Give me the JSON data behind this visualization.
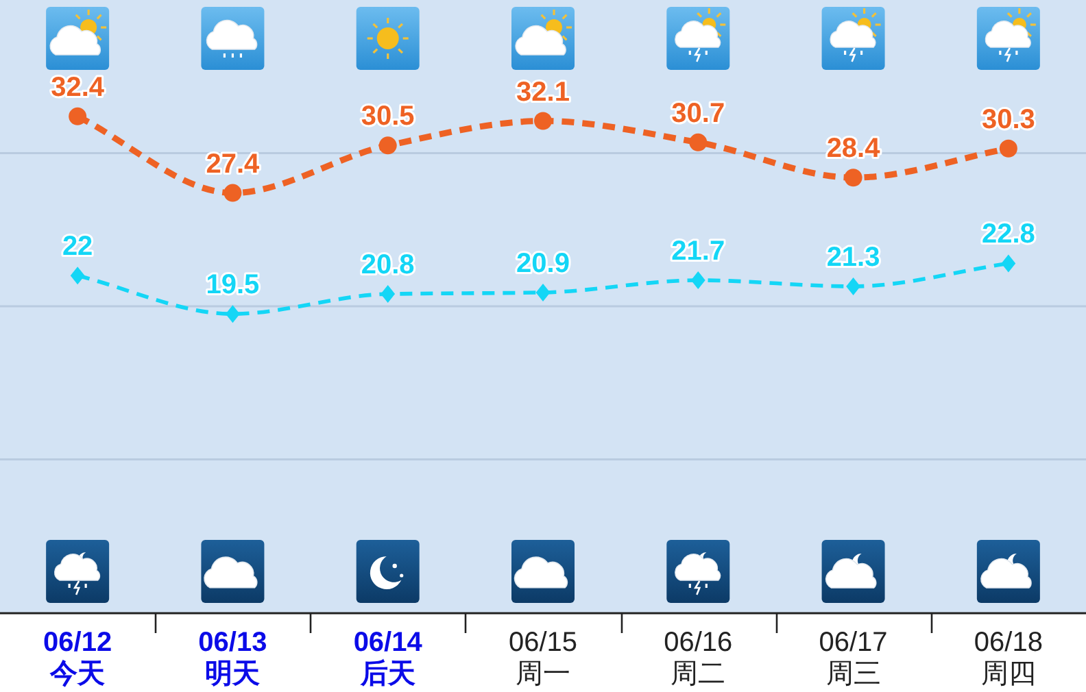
{
  "chart_data": {
    "type": "line",
    "categories": [
      "06/12\n今天",
      "06/13\n明天",
      "06/14\n后天",
      "06/15\n周一",
      "06/16\n周二",
      "06/17\n周三",
      "06/18\n周四"
    ],
    "series": [
      {
        "color": "#ee6224",
        "values": [
          32.4,
          27.4,
          30.5,
          32.1,
          30.7,
          28.4,
          30.3
        ],
        "marker": "circle",
        "line_style": "dashed"
      },
      {
        "color": "#14d6f6",
        "values": [
          22,
          19.5,
          20.8,
          20.9,
          21.7,
          21.3,
          22.8
        ],
        "marker": "diamond",
        "line_style": "dashed"
      }
    ],
    "ylim": [
      0,
      40
    ],
    "yticks": [
      {
        "value": 10,
        "label": null
      },
      {
        "value": 20,
        "label": null
      },
      {
        "value": 30,
        "label": null
      }
    ],
    "data_labels": true,
    "grid": "y",
    "tick_labels": "x"
  }
}
